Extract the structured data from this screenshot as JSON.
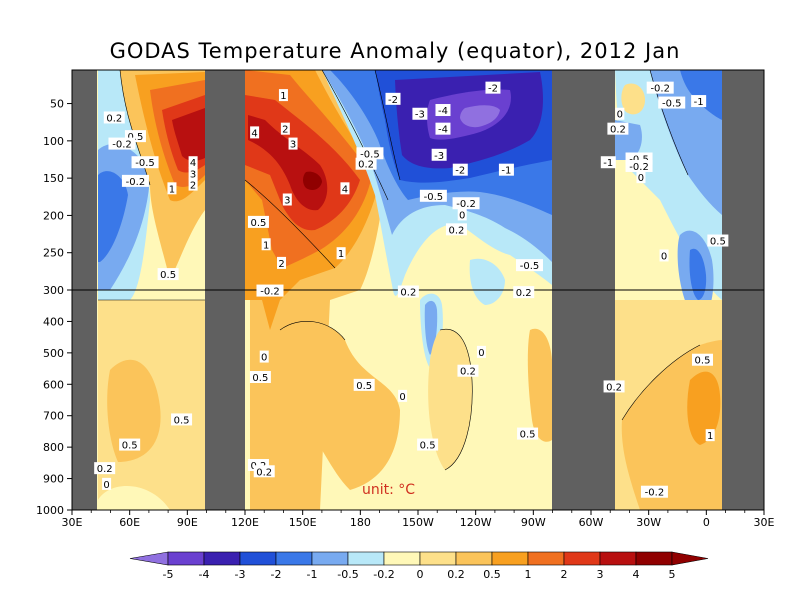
{
  "chart_data": {
    "type": "heatmap",
    "title": "GODAS Temperature Anomaly (equator), 2012 Jan",
    "unit_label": "unit: °C",
    "x_ticks": [
      "30E",
      "60E",
      "90E",
      "120E",
      "150E",
      "180",
      "150W",
      "120W",
      "90W",
      "60W",
      "30W",
      "0",
      "30E"
    ],
    "y_ticks": [
      "50",
      "100",
      "150",
      "200",
      "250",
      "300",
      "400",
      "500",
      "600",
      "700",
      "800",
      "900",
      "1000"
    ],
    "xlim_deg_east": [
      30,
      390
    ],
    "depth_axis_m": [
      5,
      1000
    ],
    "depth_axis_break_m": 300,
    "land_masks_deg_east": [
      [
        40,
        50
      ],
      [
        100,
        120
      ],
      [
        280,
        305
      ],
      [
        370,
        390
      ]
    ],
    "colorbar": {
      "levels": [
        "-5",
        "-4",
        "-3",
        "-2",
        "-1",
        "-0.5",
        "-0.2",
        "0",
        "0.2",
        "0.5",
        "1",
        "2",
        "3",
        "4",
        "5"
      ],
      "colors": [
        "#9070e0",
        "#6a40d0",
        "#3a20b0",
        "#2050d8",
        "#3a78e8",
        "#78aaf0",
        "#b8e8f8",
        "#fff8b8",
        "#fde08a",
        "#fbc45a",
        "#f8a020",
        "#f07020",
        "#e03818",
        "#b81010",
        "#900000"
      ]
    },
    "contour_labels": [
      {
        "text": "0.2",
        "lon": 52,
        "depth": 70
      },
      {
        "text": "0.5",
        "lon": 63,
        "depth": 95
      },
      {
        "text": "-0.2",
        "lon": 56,
        "depth": 105
      },
      {
        "text": "-0.5",
        "lon": 68,
        "depth": 130
      },
      {
        "text": "-0.2",
        "lon": 63,
        "depth": 155
      },
      {
        "text": "4",
        "lon": 93,
        "depth": 130
      },
      {
        "text": "3",
        "lon": 93,
        "depth": 145
      },
      {
        "text": "2",
        "lon": 93,
        "depth": 160
      },
      {
        "text": "1",
        "lon": 82,
        "depth": 165
      },
      {
        "text": "0.5",
        "lon": 80,
        "depth": 280
      },
      {
        "text": "1",
        "lon": 140,
        "depth": 40
      },
      {
        "text": "4",
        "lon": 125,
        "depth": 90
      },
      {
        "text": "2",
        "lon": 141,
        "depth": 85
      },
      {
        "text": "3",
        "lon": 145,
        "depth": 105
      },
      {
        "text": "4",
        "lon": 172,
        "depth": 165
      },
      {
        "text": "3",
        "lon": 142,
        "depth": 180
      },
      {
        "text": "0.5",
        "lon": 127,
        "depth": 210
      },
      {
        "text": "1",
        "lon": 131,
        "depth": 240
      },
      {
        "text": "2",
        "lon": 139,
        "depth": 265
      },
      {
        "text": "1",
        "lon": 170,
        "depth": 252
      },
      {
        "text": "-0.5",
        "lon": 185,
        "depth": 118
      },
      {
        "text": "0.2",
        "lon": 183,
        "depth": 132
      },
      {
        "text": "-2",
        "lon": 197,
        "depth": 45
      },
      {
        "text": "-3",
        "lon": 211,
        "depth": 65
      },
      {
        "text": "-4",
        "lon": 223,
        "depth": 60
      },
      {
        "text": "-4",
        "lon": 223,
        "depth": 85
      },
      {
        "text": "-3",
        "lon": 221,
        "depth": 120
      },
      {
        "text": "-2",
        "lon": 249,
        "depth": 30
      },
      {
        "text": "-2",
        "lon": 232,
        "depth": 140
      },
      {
        "text": "-1",
        "lon": 256,
        "depth": 140
      },
      {
        "text": "-0.5",
        "lon": 218,
        "depth": 175
      },
      {
        "text": "-0.2",
        "lon": 235,
        "depth": 185
      },
      {
        "text": "0",
        "lon": 233,
        "depth": 200
      },
      {
        "text": "0.2",
        "lon": 230,
        "depth": 220
      },
      {
        "text": "-0.5",
        "lon": 268,
        "depth": 268
      },
      {
        "text": "-0.2",
        "lon": 133,
        "depth": 305
      },
      {
        "text": "0.2",
        "lon": 205,
        "depth": 308
      },
      {
        "text": "0.2",
        "lon": 265,
        "depth": 310
      },
      {
        "text": "0",
        "lon": 130,
        "depth": 515
      },
      {
        "text": "0.5",
        "lon": 128,
        "depth": 580
      },
      {
        "text": "0.5",
        "lon": 182,
        "depth": 605
      },
      {
        "text": "0",
        "lon": 202,
        "depth": 640
      },
      {
        "text": "0",
        "lon": 243,
        "depth": 500
      },
      {
        "text": "0.2",
        "lon": 236,
        "depth": 560
      },
      {
        "text": "0.5",
        "lon": 87,
        "depth": 715
      },
      {
        "text": "0.5",
        "lon": 60,
        "depth": 795
      },
      {
        "text": "0.2",
        "lon": 47,
        "depth": 870
      },
      {
        "text": "0",
        "lon": 48,
        "depth": 920
      },
      {
        "text": "0.5",
        "lon": 215,
        "depth": 795
      },
      {
        "text": "0.5",
        "lon": 267,
        "depth": 760
      },
      {
        "text": "0.2",
        "lon": 127,
        "depth": 860
      },
      {
        "text": "0.2",
        "lon": 130,
        "depth": 880
      },
      {
        "text": "-0.2",
        "lon": 336,
        "depth": 30
      },
      {
        "text": "-0.5",
        "lon": 342,
        "depth": 50
      },
      {
        "text": "-1",
        "lon": 356,
        "depth": 48
      },
      {
        "text": "0",
        "lon": 315,
        "depth": 65
      },
      {
        "text": "0.2",
        "lon": 314,
        "depth": 85
      },
      {
        "text": "-1",
        "lon": 309,
        "depth": 130
      },
      {
        "text": "-0.5",
        "lon": 325,
        "depth": 125
      },
      {
        "text": "-0.2",
        "lon": 325,
        "depth": 135
      },
      {
        "text": "0",
        "lon": 326,
        "depth": 150
      },
      {
        "text": "0.5",
        "lon": 366,
        "depth": 235
      },
      {
        "text": "0",
        "lon": 338,
        "depth": 255
      },
      {
        "text": "0.5",
        "lon": 358,
        "depth": 525
      },
      {
        "text": "0.2",
        "lon": 312,
        "depth": 610
      },
      {
        "text": "1",
        "lon": 362,
        "depth": 765
      },
      {
        "text": "-0.2",
        "lon": 333,
        "depth": 945
      }
    ]
  }
}
